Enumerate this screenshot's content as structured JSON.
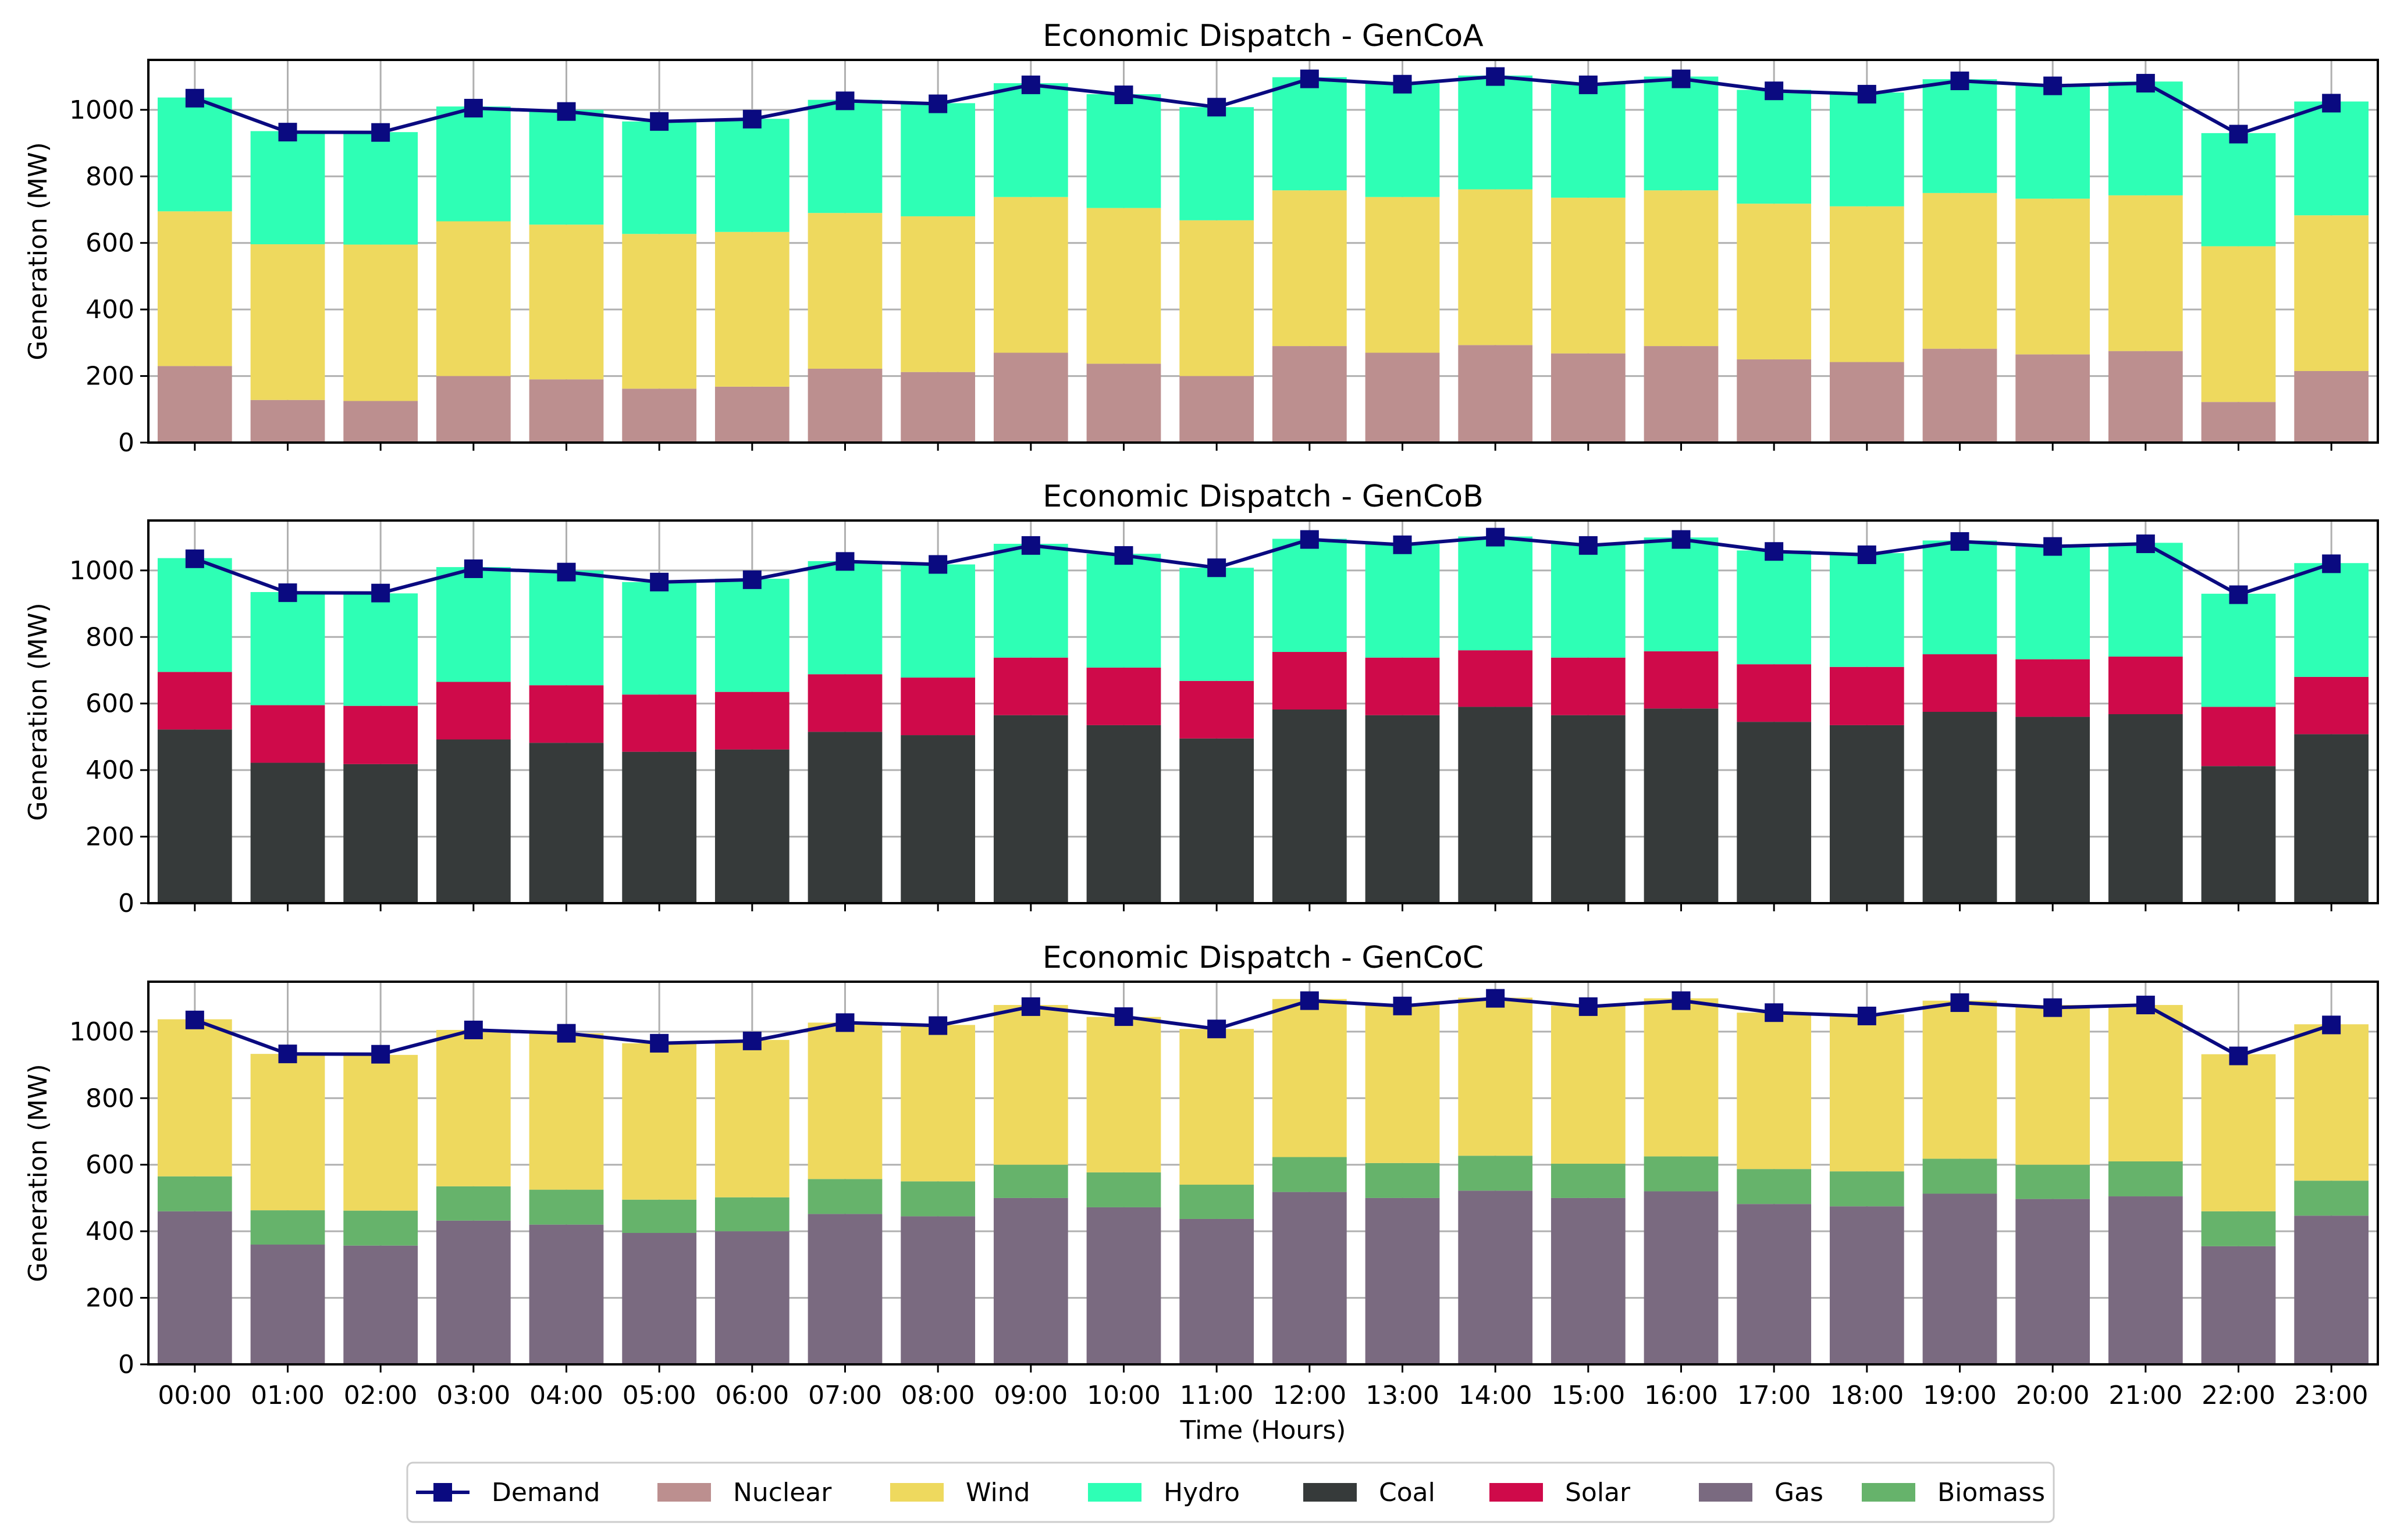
{
  "chart_data": {
    "type": "bar",
    "stacked": true,
    "categories": [
      "00:00",
      "01:00",
      "02:00",
      "03:00",
      "04:00",
      "05:00",
      "06:00",
      "07:00",
      "08:00",
      "09:00",
      "10:00",
      "11:00",
      "12:00",
      "13:00",
      "14:00",
      "15:00",
      "16:00",
      "17:00",
      "18:00",
      "19:00",
      "20:00",
      "21:00",
      "22:00",
      "23:00"
    ],
    "xlabel": "Time (Hours)",
    "demand": {
      "name": "Demand",
      "values": [
        1035,
        933,
        932,
        1005,
        995,
        965,
        972,
        1027,
        1018,
        1075,
        1045,
        1008,
        1093,
        1077,
        1100,
        1075,
        1093,
        1057,
        1047,
        1087,
        1072,
        1080,
        927,
        1020
      ]
    },
    "panels": [
      {
        "title": "Economic Dispatch - GenCoA",
        "ylabel": "Generation (MW)",
        "ylim": [
          0,
          1150
        ],
        "yticks": [
          0,
          200,
          400,
          600,
          800,
          1000
        ],
        "series": [
          {
            "name": "Nuclear",
            "values": [
              230,
              128,
              125,
              200,
              190,
              162,
              168,
              222,
              212,
              270,
              237,
              200,
              290,
              270,
              293,
              268,
              290,
              250,
              242,
              282,
              265,
              275,
              122,
              215
            ]
          },
          {
            "name": "Wind",
            "values": [
              465,
              468,
              470,
              465,
              465,
              465,
              465,
              468,
              468,
              468,
              468,
              468,
              468,
              468,
              468,
              468,
              468,
              468,
              468,
              468,
              468,
              468,
              468,
              468
            ]
          },
          {
            "name": "Hydro",
            "values": [
              342,
              340,
              338,
              345,
              345,
              338,
              340,
              340,
              340,
              342,
              342,
              340,
              340,
              342,
              342,
              342,
              342,
              342,
              342,
              342,
              342,
              342,
              340,
              342
            ]
          }
        ]
      },
      {
        "title": "Economic Dispatch - GenCoB",
        "ylabel": "Generation (MW)",
        "ylim": [
          0,
          1150
        ],
        "yticks": [
          0,
          200,
          400,
          600,
          800,
          1000
        ],
        "series": [
          {
            "name": "Coal",
            "values": [
              522,
              422,
              418,
              492,
              482,
              455,
              462,
              515,
              505,
              565,
              535,
              495,
              582,
              565,
              590,
              565,
              585,
              545,
              535,
              575,
              560,
              568,
              412,
              508
            ]
          },
          {
            "name": "Solar",
            "values": [
              173,
              173,
              175,
              173,
              173,
              172,
              173,
              173,
              173,
              173,
              173,
              173,
              173,
              173,
              170,
              173,
              172,
              173,
              175,
              173,
              173,
              173,
              178,
              172
            ]
          },
          {
            "name": "Hydro",
            "values": [
              342,
              340,
              338,
              345,
              345,
              338,
              340,
              340,
              340,
              342,
              342,
              340,
              340,
              342,
              342,
              342,
              342,
              342,
              342,
              342,
              342,
              342,
              340,
              342
            ]
          }
        ]
      },
      {
        "title": "Economic Dispatch - GenCoC",
        "ylabel": "Generation (MW)",
        "ylim": [
          0,
          1150
        ],
        "yticks": [
          0,
          200,
          400,
          600,
          800,
          1000
        ],
        "series": [
          {
            "name": "Gas",
            "values": [
              460,
              360,
              357,
              432,
              420,
              395,
              400,
              452,
              445,
              500,
              472,
              437,
              518,
              500,
              522,
              500,
              520,
              482,
              475,
              513,
              497,
              505,
              355,
              447
            ]
          },
          {
            "name": "Biomass",
            "values": [
              105,
              103,
              105,
              103,
              105,
              100,
              102,
              105,
              105,
              100,
              105,
              103,
              105,
              105,
              105,
              103,
              105,
              105,
              105,
              105,
              103,
              105,
              105,
              105
            ]
          },
          {
            "name": "Wind",
            "values": [
              472,
              470,
              468,
              470,
              470,
              470,
              473,
              470,
              470,
              480,
              467,
              468,
              475,
              477,
              475,
              475,
              475,
              470,
              472,
              475,
              480,
              470,
              472,
              470
            ]
          }
        ]
      }
    ],
    "legend": [
      "Demand",
      "Nuclear",
      "Wind",
      "Hydro",
      "Coal",
      "Solar",
      "Gas",
      "Biomass"
    ],
    "legend_position": "bottom-center",
    "grid": true
  },
  "colors": {
    "Demand": "#0a0a80",
    "Nuclear": "#bc8f8f",
    "Wind": "#eed95e",
    "Hydro": "#2effb5",
    "Coal": "#363a3a",
    "Solar": "#cf0a4a",
    "Gas": "#7a6a80",
    "Biomass": "#66b36b",
    "grid": "#b0b0b0",
    "axis": "#000000"
  }
}
